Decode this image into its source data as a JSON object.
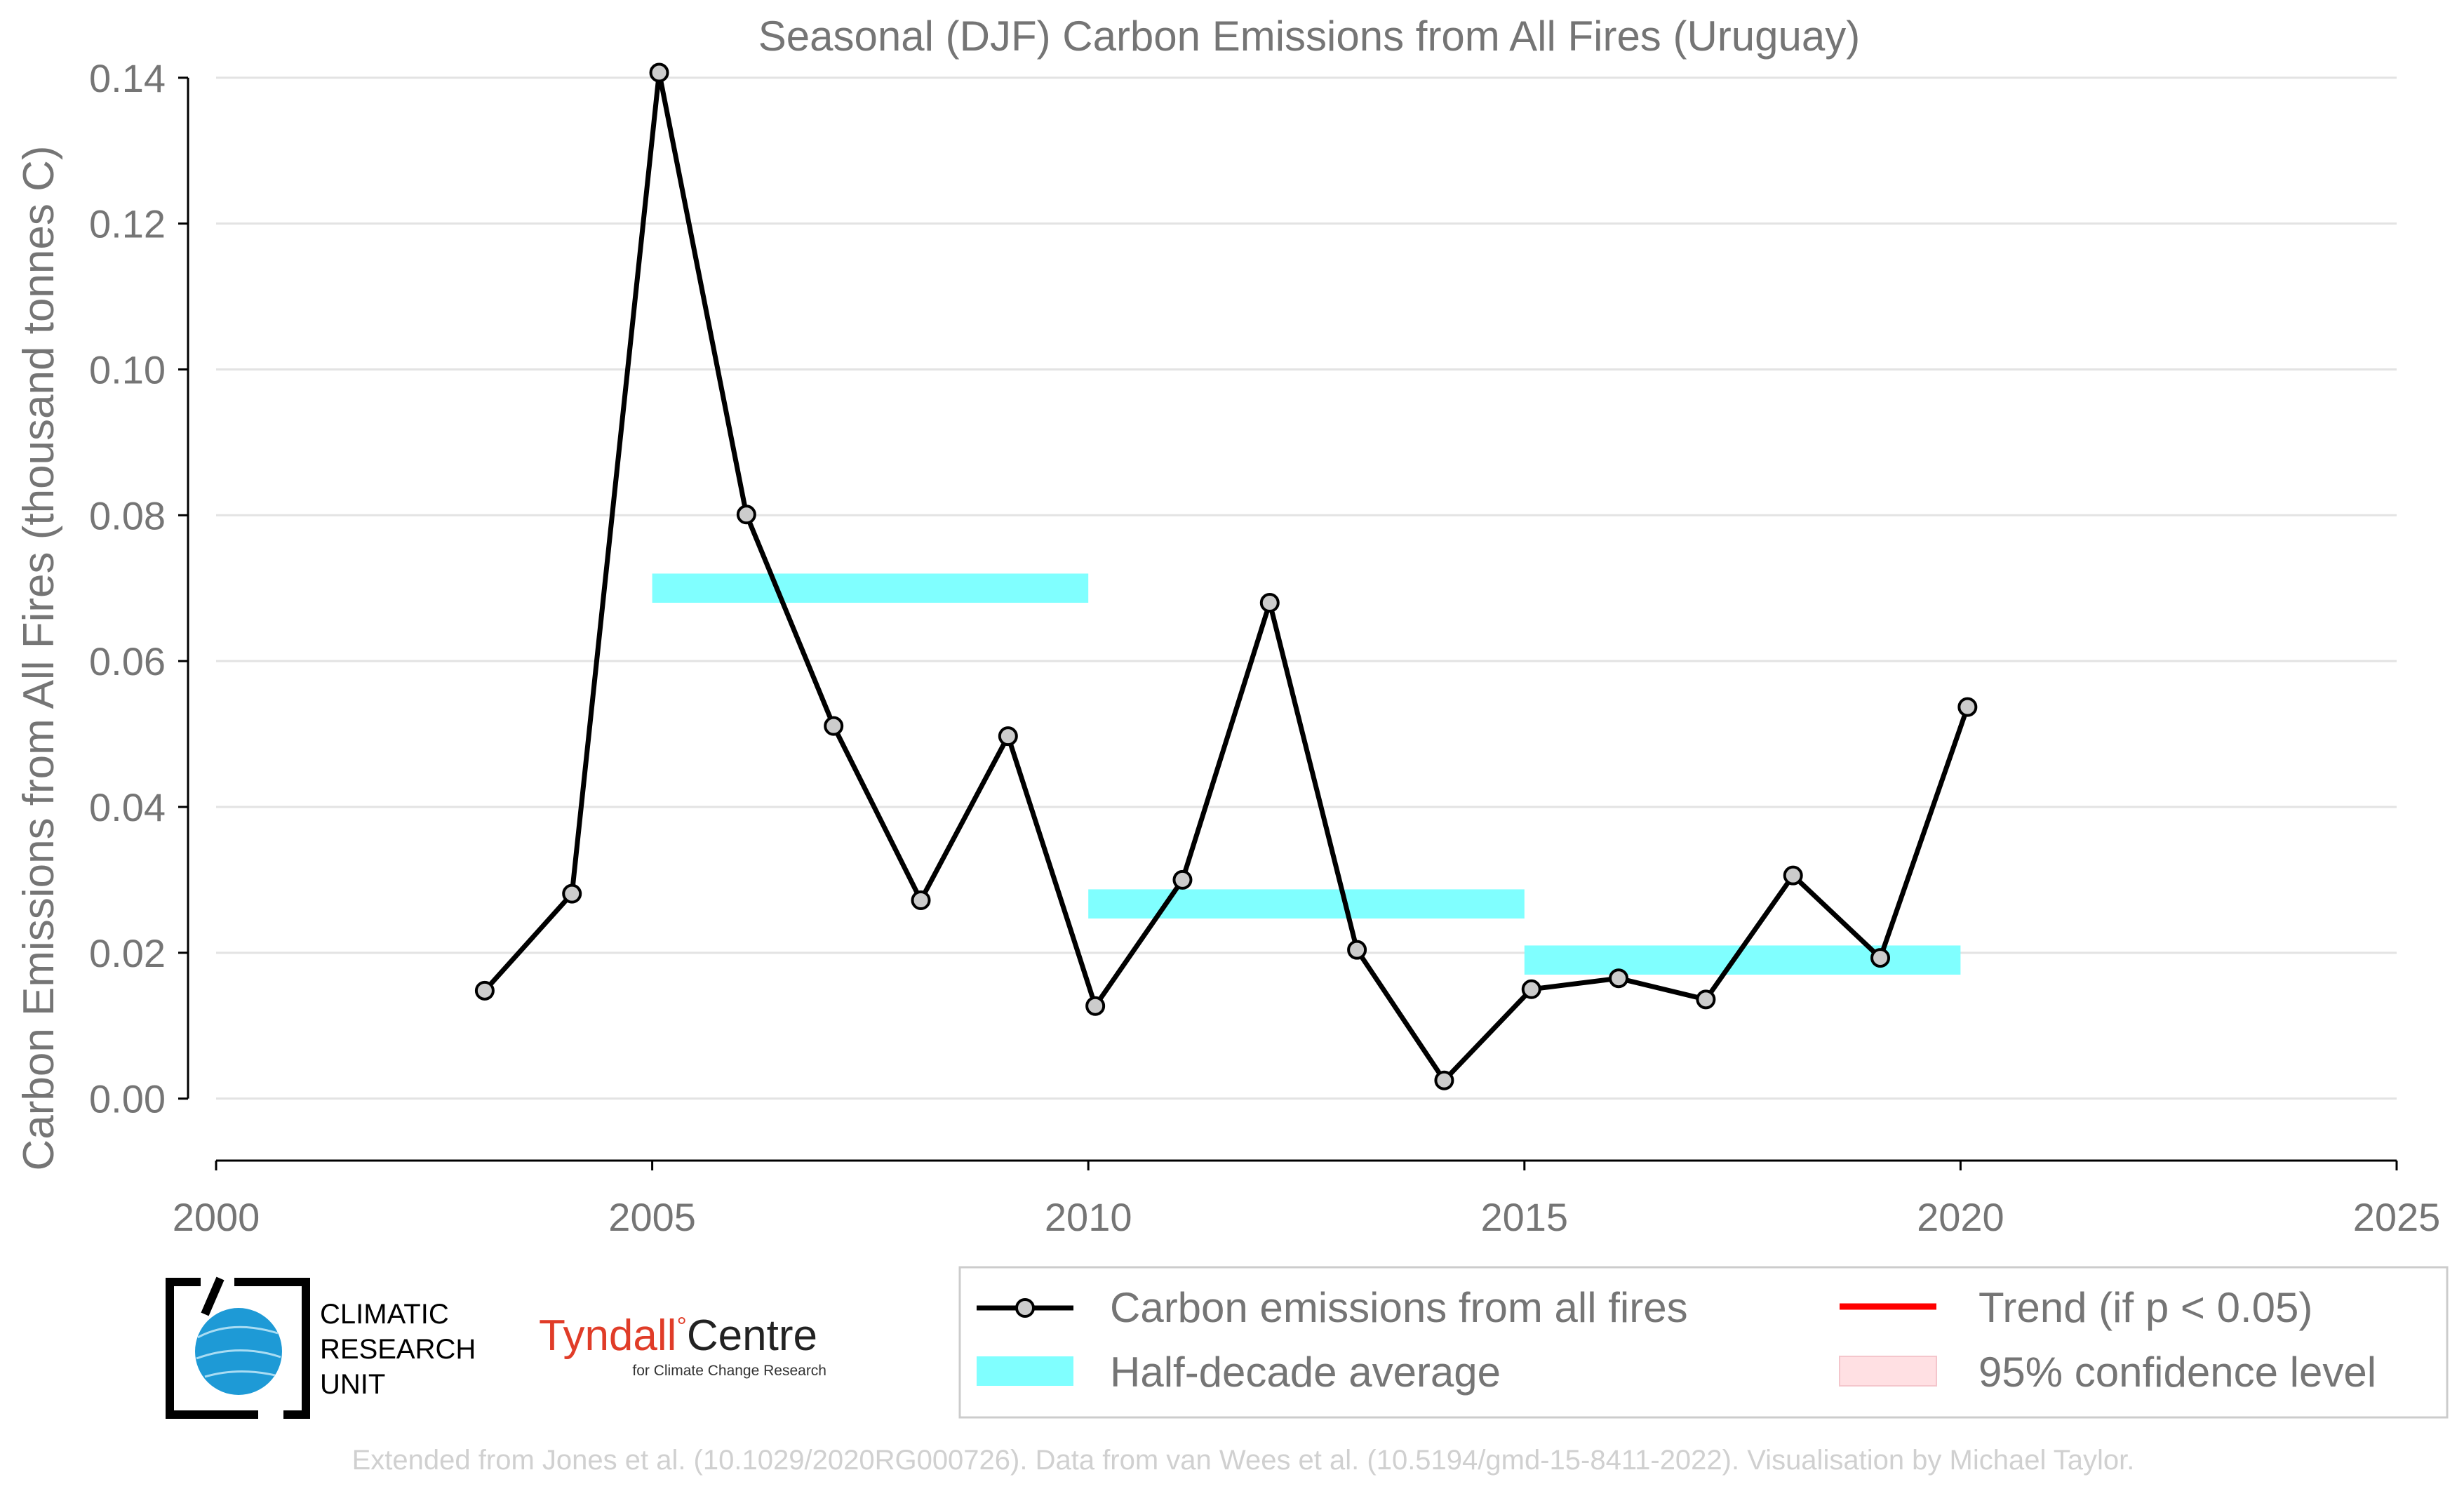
{
  "chart_data": {
    "type": "line",
    "title": "Seasonal (DJF) Carbon Emissions from All Fires (Uruguay)",
    "ylabel": "Carbon Emissions from All Fires (thousand tonnes C)",
    "xlabel": "",
    "xlim": [
      2000,
      2025
    ],
    "ylim": [
      -0.0085,
      0.142
    ],
    "x_ticks": [
      2000,
      2005,
      2010,
      2015,
      2020,
      2025
    ],
    "x_tick_labels": [
      "2000",
      "2005",
      "2010",
      "2015",
      "2020",
      "2025"
    ],
    "y_ticks": [
      0,
      0.02,
      0.04,
      0.06,
      0.08,
      0.1,
      0.12,
      0.14
    ],
    "y_tick_labels": [
      "0.00",
      "0.02",
      "0.04",
      "0.06",
      "0.08",
      "0.10",
      "0.12",
      "0.14"
    ],
    "grid": "horizontal",
    "series": [
      {
        "name": "Carbon emissions from all fires",
        "x": [
          2003.08,
          2004.08,
          2005.08,
          2006.08,
          2007.08,
          2008.08,
          2009.08,
          2010.08,
          2011.08,
          2012.08,
          2013.08,
          2014.08,
          2015.08,
          2016.08,
          2017.08,
          2018.08,
          2019.08,
          2020.08
        ],
        "y": [
          0.0148,
          0.0281,
          0.1407,
          0.0801,
          0.0511,
          0.0272,
          0.0497,
          0.0127,
          0.03,
          0.068,
          0.0204,
          0.0025,
          0.015,
          0.0165,
          0.0136,
          0.0306,
          0.0193,
          0.0537
        ],
        "color": "#000000"
      }
    ],
    "half_decade_average": {
      "name": "Half-decade average",
      "color": "#80ffff",
      "segments": [
        {
          "x_start": 2005,
          "x_end": 2010,
          "y": 0.07
        },
        {
          "x_start": 2010,
          "x_end": 2015,
          "y": 0.0267
        },
        {
          "x_start": 2015,
          "x_end": 2020,
          "y": 0.019
        }
      ]
    },
    "legend": {
      "placement": "bottom-right",
      "entries": [
        {
          "label": "Carbon emissions from all fires",
          "type": "line-marker",
          "color": "#000000"
        },
        {
          "label": "Trend (if p < 0.05)",
          "type": "line",
          "color": "#ff0000"
        },
        {
          "label": "Half-decade average",
          "type": "band",
          "color": "#80ffff"
        },
        {
          "label": "95% confidence level",
          "type": "band",
          "color": "#ffe0e3"
        }
      ]
    }
  },
  "logos": {
    "cru_lines": [
      "CLIMATIC",
      "RESEARCH",
      "UNIT"
    ],
    "tyndall_name": "Tyndall",
    "tyndall_degree": "°",
    "tyndall_centre": "Centre",
    "tyndall_sub": "for Climate Change Research"
  },
  "credit": "Extended from Jones et al. (10.1029/2020RG000726). Data from van Wees et al. (10.5194/gmd-15-8411-2022). Visualisation by Michael Taylor."
}
